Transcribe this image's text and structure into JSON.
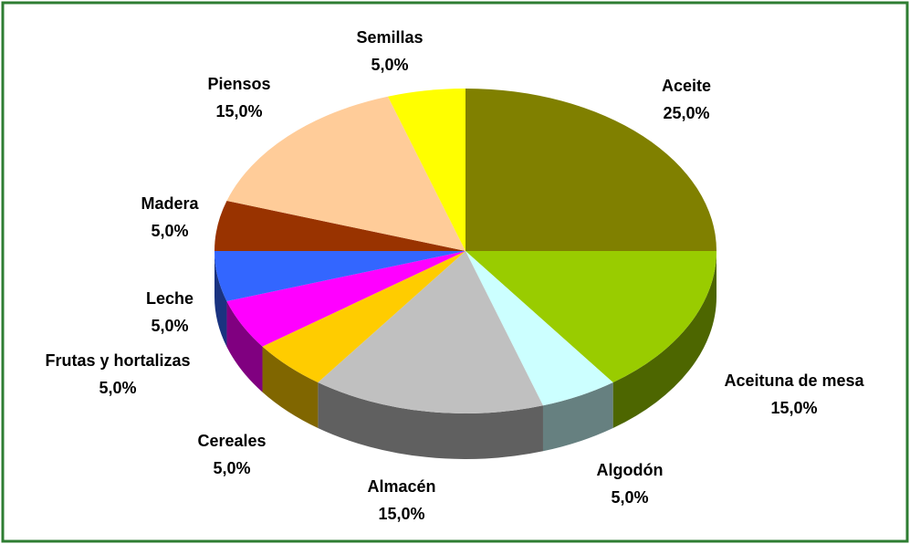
{
  "chart_data": {
    "type": "pie",
    "start_angle": 0,
    "direction": "clockwise",
    "three_d": true,
    "categories": [
      "Aceite",
      "Aceituna de mesa",
      "Algodón",
      "Almacén",
      "Cereales",
      "Frutas y hortalizas",
      "Leche",
      "Madera",
      "Piensos",
      "Semillas"
    ],
    "values": [
      25,
      15,
      5,
      15,
      5,
      5,
      5,
      5,
      15,
      5
    ],
    "value_labels": [
      "25,0%",
      "15,0%",
      "5,0%",
      "15,0%",
      "5,0%",
      "5,0%",
      "5,0%",
      "5,0%",
      "15,0%",
      "5,0%"
    ],
    "colors": [
      "#808000",
      "#99cc00",
      "#ccffff",
      "#c0c0c0",
      "#ffcc00",
      "#ff00ff",
      "#3366ff",
      "#993300",
      "#ffcc99",
      "#ffff00"
    ]
  }
}
